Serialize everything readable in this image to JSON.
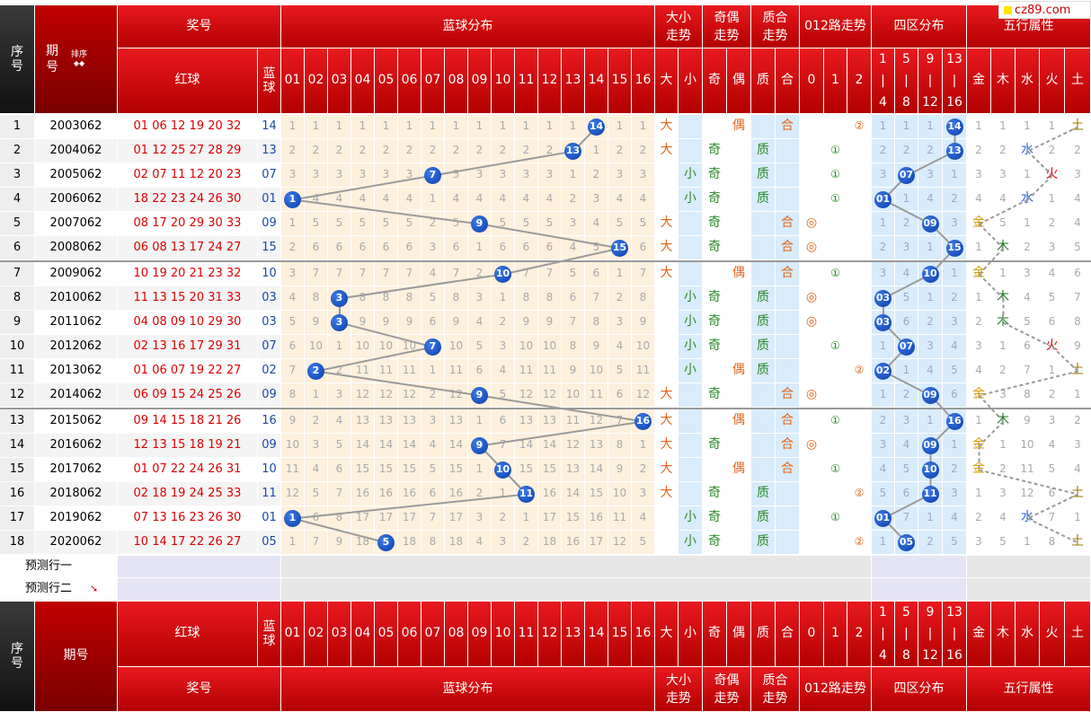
{
  "logo": "cz89.com",
  "header": {
    "seq": "序号",
    "period": "期号",
    "sort": "排序",
    "prize": "奖号",
    "red": "红球",
    "blue": "蓝球",
    "blue_dist": "蓝球分布",
    "big_small": "大小走势",
    "odd_even": "奇偶走势",
    "prime_comp": "质合走势",
    "route012": "012路走势",
    "zone4": "四区分布",
    "elements": "五行属性",
    "nums": [
      "01",
      "02",
      "03",
      "04",
      "05",
      "06",
      "07",
      "08",
      "09",
      "10",
      "11",
      "12",
      "13",
      "14",
      "15",
      "16"
    ],
    "bs": [
      "大",
      "小"
    ],
    "oe": [
      "奇",
      "偶"
    ],
    "pc": [
      "质",
      "合"
    ],
    "r": [
      "0",
      "1",
      "2"
    ],
    "zones": [
      [
        "1",
        "|",
        "4"
      ],
      [
        "5",
        "|",
        "8"
      ],
      [
        "9",
        "|",
        "12"
      ],
      [
        "13",
        "|",
        "16"
      ]
    ],
    "el": [
      "金",
      "木",
      "水",
      "火",
      "土"
    ]
  },
  "rows": [
    {
      "seq": "1",
      "period": "2003062",
      "red": "01 06 12 19 20 32",
      "blue": "14",
      "bs": "大",
      "oe": "偶",
      "pc": "合",
      "r": "②",
      "el": "土",
      "omit": [
        "1",
        "1",
        "1",
        "1",
        "1",
        "1",
        "1",
        "1",
        "1",
        "1",
        "1",
        "1",
        "1",
        "14",
        "1",
        "1"
      ],
      "zone": [
        "1",
        "1",
        "1",
        "14"
      ],
      "elo": [
        "1",
        "1",
        "1",
        "1",
        "土"
      ]
    },
    {
      "seq": "2",
      "period": "2004062",
      "red": "01 12 25 27 28 29",
      "blue": "13",
      "bs": "大",
      "oe": "奇",
      "pc": "质",
      "r": "①",
      "el": "水",
      "omit": [
        "2",
        "2",
        "2",
        "2",
        "2",
        "2",
        "2",
        "2",
        "2",
        "2",
        "2",
        "2",
        "13",
        "1",
        "2",
        "2"
      ],
      "zone": [
        "2",
        "2",
        "2",
        "13"
      ],
      "elo": [
        "2",
        "2",
        "水",
        "2",
        "2"
      ]
    },
    {
      "seq": "3",
      "period": "2005062",
      "red": "02 07 11 12 20 23",
      "blue": "07",
      "bs": "小",
      "oe": "奇",
      "pc": "质",
      "r": "①",
      "el": "火",
      "omit": [
        "3",
        "3",
        "3",
        "3",
        "3",
        "3",
        "7",
        "3",
        "3",
        "3",
        "3",
        "3",
        "1",
        "2",
        "3",
        "3"
      ],
      "zone": [
        "3",
        "07",
        "3",
        "1"
      ],
      "elo": [
        "3",
        "3",
        "1",
        "火",
        "3"
      ]
    },
    {
      "seq": "4",
      "period": "2006062",
      "red": "18 22 23 24 26 30",
      "blue": "01",
      "bs": "小",
      "oe": "奇",
      "pc": "质",
      "r": "①",
      "el": "水",
      "omit": [
        "1",
        "4",
        "4",
        "4",
        "4",
        "4",
        "1",
        "4",
        "4",
        "4",
        "4",
        "4",
        "2",
        "3",
        "4",
        "4"
      ],
      "zone": [
        "01",
        "1",
        "4",
        "2"
      ],
      "elo": [
        "4",
        "4",
        "水",
        "1",
        "4"
      ]
    },
    {
      "seq": "5",
      "period": "2007062",
      "red": "08 17 20 29 30 33",
      "blue": "09",
      "bs": "大",
      "oe": "奇",
      "pc": "合",
      "r": "◎",
      "el": "金",
      "omit": [
        "1",
        "5",
        "5",
        "5",
        "5",
        "5",
        "2",
        "5",
        "9",
        "5",
        "5",
        "5",
        "3",
        "4",
        "5",
        "5"
      ],
      "zone": [
        "1",
        "2",
        "09",
        "3"
      ],
      "elo": [
        "金",
        "5",
        "1",
        "2",
        "4"
      ]
    },
    {
      "seq": "6",
      "period": "2008062",
      "red": "06 08 13 17 24 27",
      "blue": "15",
      "bs": "大",
      "oe": "奇",
      "pc": "合",
      "r": "◎",
      "el": "木",
      "omit": [
        "2",
        "6",
        "6",
        "6",
        "6",
        "6",
        "3",
        "6",
        "1",
        "6",
        "6",
        "6",
        "4",
        "5",
        "15",
        "6"
      ],
      "zone": [
        "2",
        "3",
        "1",
        "15"
      ],
      "elo": [
        "1",
        "木",
        "2",
        "3",
        "5"
      ]
    },
    {
      "seq": "7",
      "period": "2009062",
      "red": "10 19 20 21 23 32",
      "blue": "10",
      "bs": "大",
      "oe": "偶",
      "pc": "合",
      "r": "①",
      "el": "金",
      "omit": [
        "3",
        "7",
        "7",
        "7",
        "7",
        "7",
        "4",
        "7",
        "2",
        "10",
        "7",
        "7",
        "5",
        "6",
        "1",
        "7"
      ],
      "zone": [
        "3",
        "4",
        "10",
        "1"
      ],
      "elo": [
        "金",
        "1",
        "3",
        "4",
        "6"
      ]
    },
    {
      "seq": "8",
      "period": "2010062",
      "red": "11 13 15 20 31 33",
      "blue": "03",
      "bs": "小",
      "oe": "奇",
      "pc": "质",
      "r": "◎",
      "el": "木",
      "omit": [
        "4",
        "8",
        "3",
        "8",
        "8",
        "8",
        "5",
        "8",
        "3",
        "1",
        "8",
        "8",
        "6",
        "7",
        "2",
        "8"
      ],
      "zone": [
        "03",
        "5",
        "1",
        "2"
      ],
      "elo": [
        "1",
        "木",
        "4",
        "5",
        "7"
      ]
    },
    {
      "seq": "9",
      "period": "2011062",
      "red": "04 08 09 10 29 30",
      "blue": "03",
      "bs": "小",
      "oe": "奇",
      "pc": "质",
      "r": "◎",
      "el": "木",
      "omit": [
        "5",
        "9",
        "3",
        "9",
        "9",
        "9",
        "6",
        "9",
        "4",
        "2",
        "9",
        "9",
        "7",
        "8",
        "3",
        "9"
      ],
      "zone": [
        "03",
        "6",
        "2",
        "3"
      ],
      "elo": [
        "2",
        "木",
        "5",
        "6",
        "8"
      ]
    },
    {
      "seq": "10",
      "period": "2012062",
      "red": "02 13 16 17 29 31",
      "blue": "07",
      "bs": "小",
      "oe": "奇",
      "pc": "质",
      "r": "①",
      "el": "火",
      "omit": [
        "6",
        "10",
        "1",
        "10",
        "10",
        "10",
        "7",
        "10",
        "5",
        "3",
        "10",
        "10",
        "8",
        "9",
        "4",
        "10"
      ],
      "zone": [
        "1",
        "07",
        "3",
        "4"
      ],
      "elo": [
        "3",
        "1",
        "6",
        "火",
        "9"
      ]
    },
    {
      "seq": "11",
      "period": "2013062",
      "red": "01 06 07 19 22 27",
      "blue": "02",
      "bs": "小",
      "oe": "偶",
      "pc": "质",
      "r": "②",
      "el": "土",
      "omit": [
        "7",
        "2",
        "2",
        "11",
        "11",
        "11",
        "1",
        "11",
        "6",
        "4",
        "11",
        "11",
        "9",
        "10",
        "5",
        "11"
      ],
      "zone": [
        "02",
        "1",
        "4",
        "5"
      ],
      "elo": [
        "4",
        "2",
        "7",
        "1",
        "土"
      ]
    },
    {
      "seq": "12",
      "period": "2014062",
      "red": "06 09 15 24 25 26",
      "blue": "09",
      "bs": "大",
      "oe": "奇",
      "pc": "合",
      "r": "◎",
      "el": "金",
      "omit": [
        "8",
        "1",
        "3",
        "12",
        "12",
        "12",
        "2",
        "12",
        "9",
        "5",
        "12",
        "12",
        "10",
        "11",
        "6",
        "12"
      ],
      "zone": [
        "1",
        "2",
        "09",
        "6"
      ],
      "elo": [
        "金",
        "3",
        "8",
        "2",
        "1"
      ]
    },
    {
      "seq": "13",
      "period": "2015062",
      "red": "09 14 15 18 21 26",
      "blue": "16",
      "bs": "大",
      "oe": "偶",
      "pc": "合",
      "r": "①",
      "el": "木",
      "omit": [
        "9",
        "2",
        "4",
        "13",
        "13",
        "13",
        "3",
        "13",
        "1",
        "6",
        "13",
        "13",
        "11",
        "12",
        "7",
        "16"
      ],
      "zone": [
        "2",
        "3",
        "1",
        "16"
      ],
      "elo": [
        "1",
        "木",
        "9",
        "3",
        "2"
      ]
    },
    {
      "seq": "14",
      "period": "2016062",
      "red": "12 13 15 18 19 21",
      "blue": "09",
      "bs": "大",
      "oe": "奇",
      "pc": "合",
      "r": "◎",
      "el": "金",
      "omit": [
        "10",
        "3",
        "5",
        "14",
        "14",
        "14",
        "4",
        "14",
        "9",
        "7",
        "14",
        "14",
        "12",
        "13",
        "8",
        "1"
      ],
      "zone": [
        "3",
        "4",
        "09",
        "1"
      ],
      "elo": [
        "金",
        "1",
        "10",
        "4",
        "3"
      ]
    },
    {
      "seq": "15",
      "period": "2017062",
      "red": "01 07 22 24 26 31",
      "blue": "10",
      "bs": "大",
      "oe": "偶",
      "pc": "合",
      "r": "①",
      "el": "金",
      "omit": [
        "11",
        "4",
        "6",
        "15",
        "15",
        "15",
        "5",
        "15",
        "1",
        "10",
        "15",
        "15",
        "13",
        "14",
        "9",
        "2"
      ],
      "zone": [
        "4",
        "5",
        "10",
        "2"
      ],
      "elo": [
        "金",
        "2",
        "11",
        "5",
        "4"
      ]
    },
    {
      "seq": "16",
      "period": "2018062",
      "red": "02 18 19 24 25 33",
      "blue": "11",
      "bs": "大",
      "oe": "奇",
      "pc": "质",
      "r": "②",
      "el": "土",
      "omit": [
        "12",
        "5",
        "7",
        "16",
        "16",
        "16",
        "6",
        "16",
        "2",
        "1",
        "11",
        "16",
        "14",
        "15",
        "10",
        "3"
      ],
      "zone": [
        "5",
        "6",
        "11",
        "3"
      ],
      "elo": [
        "1",
        "3",
        "12",
        "6",
        "土"
      ]
    },
    {
      "seq": "17",
      "period": "2019062",
      "red": "07 13 16 23 26 30",
      "blue": "01",
      "bs": "小",
      "oe": "奇",
      "pc": "质",
      "r": "①",
      "el": "水",
      "omit": [
        "1",
        "6",
        "8",
        "17",
        "17",
        "17",
        "7",
        "17",
        "3",
        "2",
        "1",
        "17",
        "15",
        "16",
        "11",
        "4"
      ],
      "zone": [
        "01",
        "7",
        "1",
        "4"
      ],
      "elo": [
        "2",
        "4",
        "水",
        "7",
        "1"
      ]
    },
    {
      "seq": "18",
      "period": "2020062",
      "red": "10 14 17 22 26 27",
      "blue": "05",
      "bs": "小",
      "oe": "奇",
      "pc": "质",
      "r": "②",
      "el": "土",
      "omit": [
        "1",
        "7",
        "9",
        "18",
        "5",
        "18",
        "8",
        "18",
        "4",
        "3",
        "2",
        "18",
        "16",
        "17",
        "12",
        "5"
      ],
      "zone": [
        "1",
        "05",
        "2",
        "5"
      ],
      "elo": [
        "3",
        "5",
        "1",
        "8",
        "土"
      ]
    }
  ],
  "predict": [
    "预测行一",
    "预测行二"
  ]
}
